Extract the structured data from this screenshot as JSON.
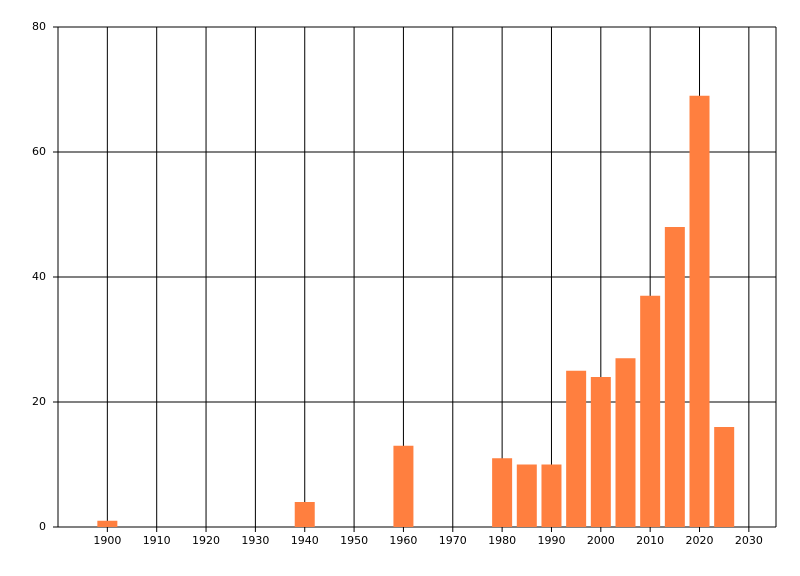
{
  "chart_data": {
    "type": "bar",
    "x": [
      1900,
      1940,
      1960,
      1980,
      1985,
      1990,
      1995,
      2000,
      2005,
      2010,
      2015,
      2020,
      2025
    ],
    "values": [
      1,
      4,
      13,
      11,
      10,
      10,
      25,
      24,
      27,
      37,
      48,
      69,
      16
    ],
    "color": "#ff7f3f",
    "xlim": [
      1890,
      2035.5
    ],
    "xticks": [
      1900,
      1910,
      1920,
      1930,
      1940,
      1950,
      1960,
      1970,
      1980,
      1990,
      2000,
      2010,
      2020,
      2030
    ],
    "ylim": [
      0,
      80
    ],
    "yticks": [
      0,
      20,
      40,
      60,
      80
    ],
    "grid": true
  }
}
